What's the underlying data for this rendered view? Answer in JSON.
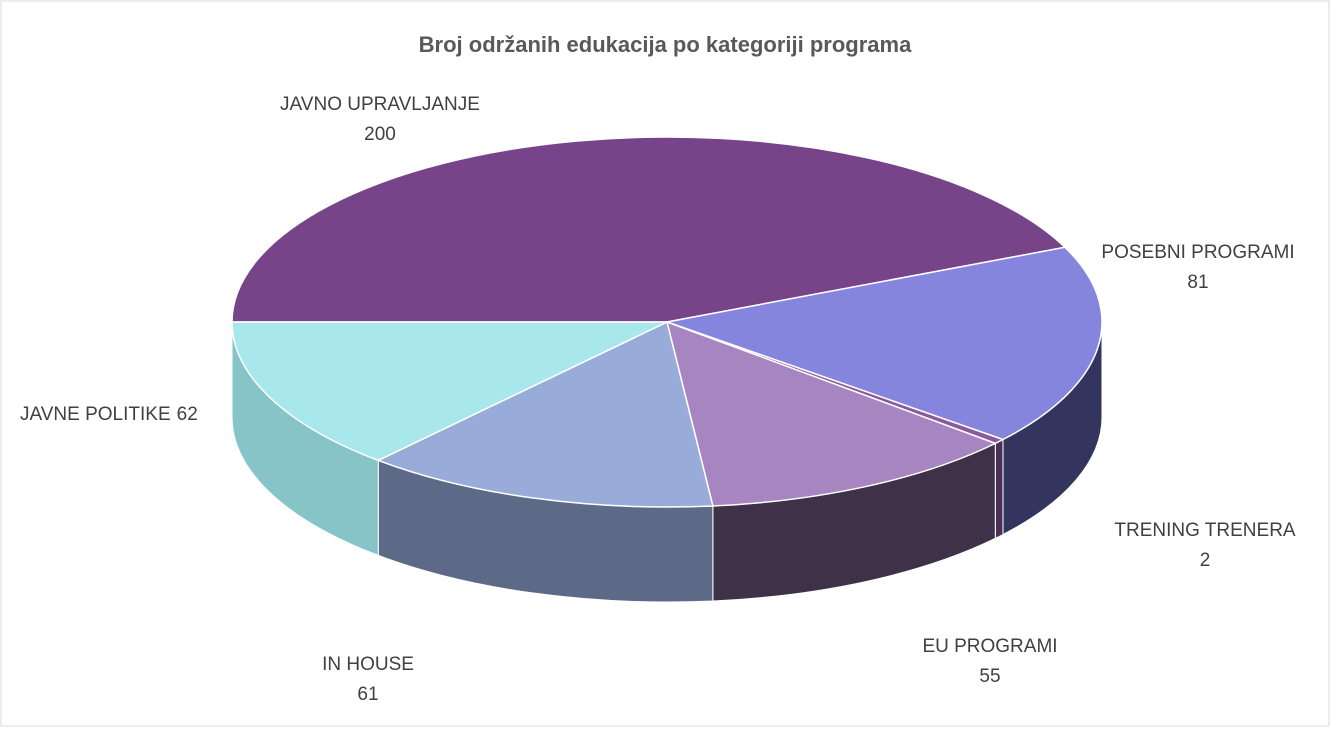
{
  "chart_data": {
    "type": "pie",
    "title": "Broj održanih edukacija po kategoriji programa",
    "categories": [
      "JAVNO UPRAVLJANJE",
      "POSEBNI PROGRAMI",
      "TRENING TRENERA",
      "EU PROGRAMI",
      "IN HOUSE",
      "JAVNE POLITIKE"
    ],
    "values": [
      200,
      81,
      2,
      55,
      61,
      62
    ],
    "colors": [
      "#77448a",
      "#8585de",
      "#8a5a9c",
      "#a785c0",
      "#99acd9",
      "#a8e8ed"
    ],
    "side_colors": [
      "#4a2a58",
      "#33355e",
      "#4a3057",
      "#3f3148",
      "#5c6a88",
      "#86c4c8"
    ]
  }
}
